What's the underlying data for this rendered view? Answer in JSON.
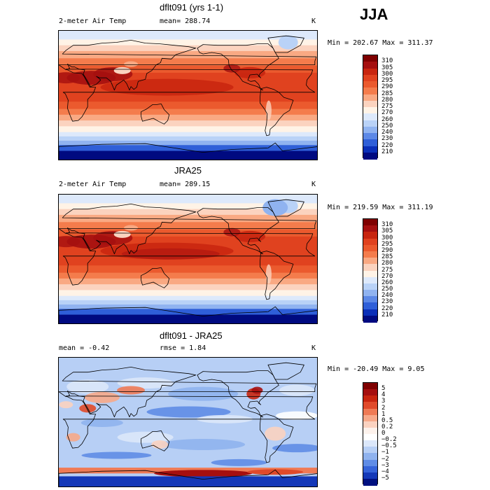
{
  "season": "JJA",
  "panels": [
    {
      "title": "dflt091 (yrs 1-1)",
      "left_label": "2-meter Air Temp",
      "mean_label": "mean= 288.74",
      "unit": "K",
      "minmax": "Min = 202.67 Max = 311.37",
      "kind": "abs",
      "ticks": [
        "310",
        "305",
        "300",
        "295",
        "290",
        "285",
        "280",
        "275",
        "270",
        "260",
        "250",
        "240",
        "230",
        "220",
        "210"
      ]
    },
    {
      "title": "JRA25",
      "left_label": "2-meter Air Temp",
      "mean_label": "mean= 289.15",
      "unit": "K",
      "minmax": "Min = 219.59 Max = 311.19",
      "kind": "abs",
      "ticks": [
        "310",
        "305",
        "300",
        "295",
        "290",
        "285",
        "280",
        "275",
        "270",
        "260",
        "250",
        "240",
        "230",
        "220",
        "210"
      ]
    },
    {
      "title": "dflt091 - JRA25",
      "left_label": "mean =   -0.42",
      "mean_label": "rmse =    1.84",
      "unit": "K",
      "minmax": "Min = -20.49 Max =   9.05",
      "kind": "diff",
      "ticks": [
        "5",
        "4",
        "3",
        "2",
        "1",
        "0.5",
        "0.2",
        "0",
        "−0.2",
        "−0.5",
        "−1",
        "−2",
        "−3",
        "−4",
        "−5"
      ]
    }
  ],
  "colors": {
    "abs_scale": [
      "#7f0000",
      "#a50f0f",
      "#c8250f",
      "#e0421f",
      "#eb5a2e",
      "#f47c4c",
      "#f9a983",
      "#fbd3bf",
      "#fff3e6",
      "#dde9fb",
      "#b9d2f7",
      "#90b3f0",
      "#5c88e6",
      "#2f5fd8",
      "#0a2fb8",
      "#000a80"
    ],
    "diff_scale": [
      "#7f0000",
      "#a50f0f",
      "#c8250f",
      "#e04a2a",
      "#ef7a55",
      "#f7a98a",
      "#fbd2c0",
      "#fdf2ec",
      "#ffffff",
      "#dbe7fa",
      "#b7cff5",
      "#8fb2ee",
      "#5f8ce6",
      "#3563d9",
      "#1438b8",
      "#001080"
    ],
    "land_outline": "#000000"
  }
}
